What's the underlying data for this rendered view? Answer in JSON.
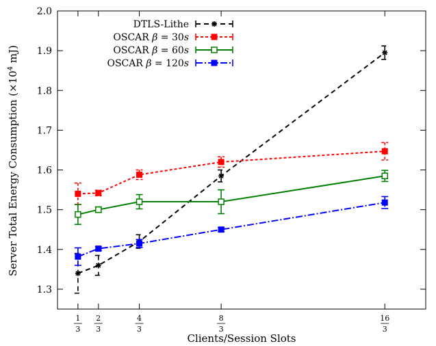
{
  "chart_data": {
    "type": "line",
    "ylabel_prefix": "Server Total Energy Consumption (×10",
    "ylabel_exp": "4",
    "ylabel_suffix": " mJ)",
    "xlabel": "Clients/Session Slots",
    "ylim": [
      1.25,
      2.0
    ],
    "yticks": [
      {
        "value": 1.3,
        "label": "1.3"
      },
      {
        "value": 1.4,
        "label": "1.4"
      },
      {
        "value": 1.5,
        "label": "1.5"
      },
      {
        "value": 1.6,
        "label": "1.6"
      },
      {
        "value": 1.7,
        "label": "1.7"
      },
      {
        "value": 1.8,
        "label": "1.8"
      },
      {
        "value": 1.9,
        "label": "1.9"
      },
      {
        "value": 2.0,
        "label": "2.0"
      }
    ],
    "xlim": [
      0,
      6
    ],
    "xticks": [
      {
        "value": 0.3333,
        "num": "1",
        "den": "3"
      },
      {
        "value": 0.6667,
        "num": "2",
        "den": "3"
      },
      {
        "value": 1.3333,
        "num": "4",
        "den": "3"
      },
      {
        "value": 2.6667,
        "num": "8",
        "den": "3"
      },
      {
        "value": 5.3333,
        "num": "16",
        "den": "3"
      }
    ],
    "x": [
      0.3333,
      0.6667,
      1.3333,
      2.6667,
      5.3333
    ],
    "legend_position": "top-left",
    "series": [
      {
        "name": "DTLS-Lithe",
        "color": "#000000",
        "dash": "7,5",
        "marker": "star",
        "values": [
          1.34,
          1.36,
          1.42,
          1.585,
          1.895
        ],
        "err": [
          0.05,
          0.025,
          0.017,
          0.015,
          0.017
        ]
      },
      {
        "name": "OSCAR β = 30s",
        "name_pre": "OSCAR ",
        "name_beta": "β",
        "name_eq": " = 30",
        "name_unit": "s",
        "color": "#ff0000",
        "dash": "4,3",
        "marker": "square",
        "values": [
          1.54,
          1.542,
          1.588,
          1.62,
          1.647
        ],
        "err": [
          0.027,
          0.007,
          0.012,
          0.013,
          0.022
        ]
      },
      {
        "name": "OSCAR β = 60s",
        "name_pre": "OSCAR ",
        "name_beta": "β",
        "name_eq": " = 60",
        "name_unit": "s",
        "color": "#008000",
        "dash": "",
        "marker": "square-open",
        "values": [
          1.488,
          1.5,
          1.52,
          1.52,
          1.585
        ],
        "err": [
          0.025,
          0.007,
          0.018,
          0.03,
          0.014
        ]
      },
      {
        "name": "OSCAR β = 120s",
        "name_pre": "OSCAR ",
        "name_beta": "β",
        "name_eq": " = 120",
        "name_unit": "s",
        "color": "#0000ff",
        "dash": "10,3,2,3",
        "marker": "square",
        "values": [
          1.382,
          1.402,
          1.415,
          1.45,
          1.518
        ],
        "err": [
          0.022,
          0.005,
          0.01,
          0.005,
          0.015
        ]
      }
    ]
  }
}
